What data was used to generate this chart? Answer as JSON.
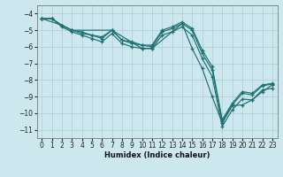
{
  "xlabel": "Humidex (Indice chaleur)",
  "xlim": [
    -0.5,
    23.5
  ],
  "ylim": [
    -11.5,
    -3.5
  ],
  "yticks": [
    -4,
    -5,
    -6,
    -7,
    -8,
    -9,
    -10,
    -11
  ],
  "xticks": [
    0,
    1,
    2,
    3,
    4,
    5,
    6,
    7,
    8,
    9,
    10,
    11,
    12,
    13,
    14,
    15,
    16,
    17,
    18,
    19,
    20,
    21,
    22,
    23
  ],
  "bg_color": "#cce8ee",
  "line_color": "#1f7070",
  "grid_color": "#aacdd4",
  "lines": [
    {
      "x": [
        0,
        1,
        2,
        3,
        4,
        5,
        6,
        7,
        8,
        9,
        10,
        11,
        12,
        13,
        14,
        15,
        16,
        17,
        18,
        19,
        20,
        21,
        22,
        23
      ],
      "y": [
        -4.3,
        -4.3,
        -4.7,
        -5.0,
        -5.2,
        -5.3,
        -5.5,
        -5.0,
        -5.6,
        -5.8,
        -5.9,
        -6.0,
        -5.1,
        -4.9,
        -4.6,
        -5.0,
        -6.4,
        -7.4,
        -10.5,
        -9.5,
        -8.8,
        -8.9,
        -8.35,
        -8.25
      ]
    },
    {
      "x": [
        0,
        1,
        2,
        3,
        4,
        5,
        6,
        7,
        8,
        9,
        10,
        11,
        12,
        13,
        14,
        15,
        16,
        17,
        18,
        19,
        20,
        21,
        22,
        23
      ],
      "y": [
        -4.3,
        -4.3,
        -4.8,
        -5.1,
        -5.3,
        -5.5,
        -5.7,
        -5.2,
        -5.8,
        -6.0,
        -6.1,
        -6.1,
        -5.3,
        -5.1,
        -4.8,
        -5.3,
        -6.7,
        -7.8,
        -10.8,
        -9.8,
        -9.15,
        -9.2,
        -8.6,
        -8.5
      ]
    },
    {
      "x": [
        0,
        2,
        3,
        7,
        10,
        11,
        14,
        15,
        16,
        17,
        18,
        19,
        20,
        21,
        22,
        23
      ],
      "y": [
        -4.3,
        -4.7,
        -5.0,
        -5.0,
        -6.1,
        -6.1,
        -4.6,
        -6.1,
        -7.3,
        -9.0,
        -10.6,
        -9.55,
        -9.5,
        -9.2,
        -8.7,
        -8.3
      ]
    },
    {
      "x": [
        0,
        1,
        2,
        3,
        4,
        5,
        6,
        7,
        8,
        9,
        10,
        11,
        12,
        13,
        14,
        15,
        16,
        17,
        18,
        19,
        20,
        21,
        22,
        23
      ],
      "y": [
        -4.3,
        -4.3,
        -4.7,
        -5.0,
        -5.1,
        -5.3,
        -5.4,
        -5.0,
        -5.6,
        -5.7,
        -5.9,
        -5.9,
        -5.0,
        -4.8,
        -4.5,
        -4.9,
        -6.2,
        -7.2,
        -10.4,
        -9.4,
        -8.7,
        -8.8,
        -8.3,
        -8.2
      ]
    }
  ]
}
